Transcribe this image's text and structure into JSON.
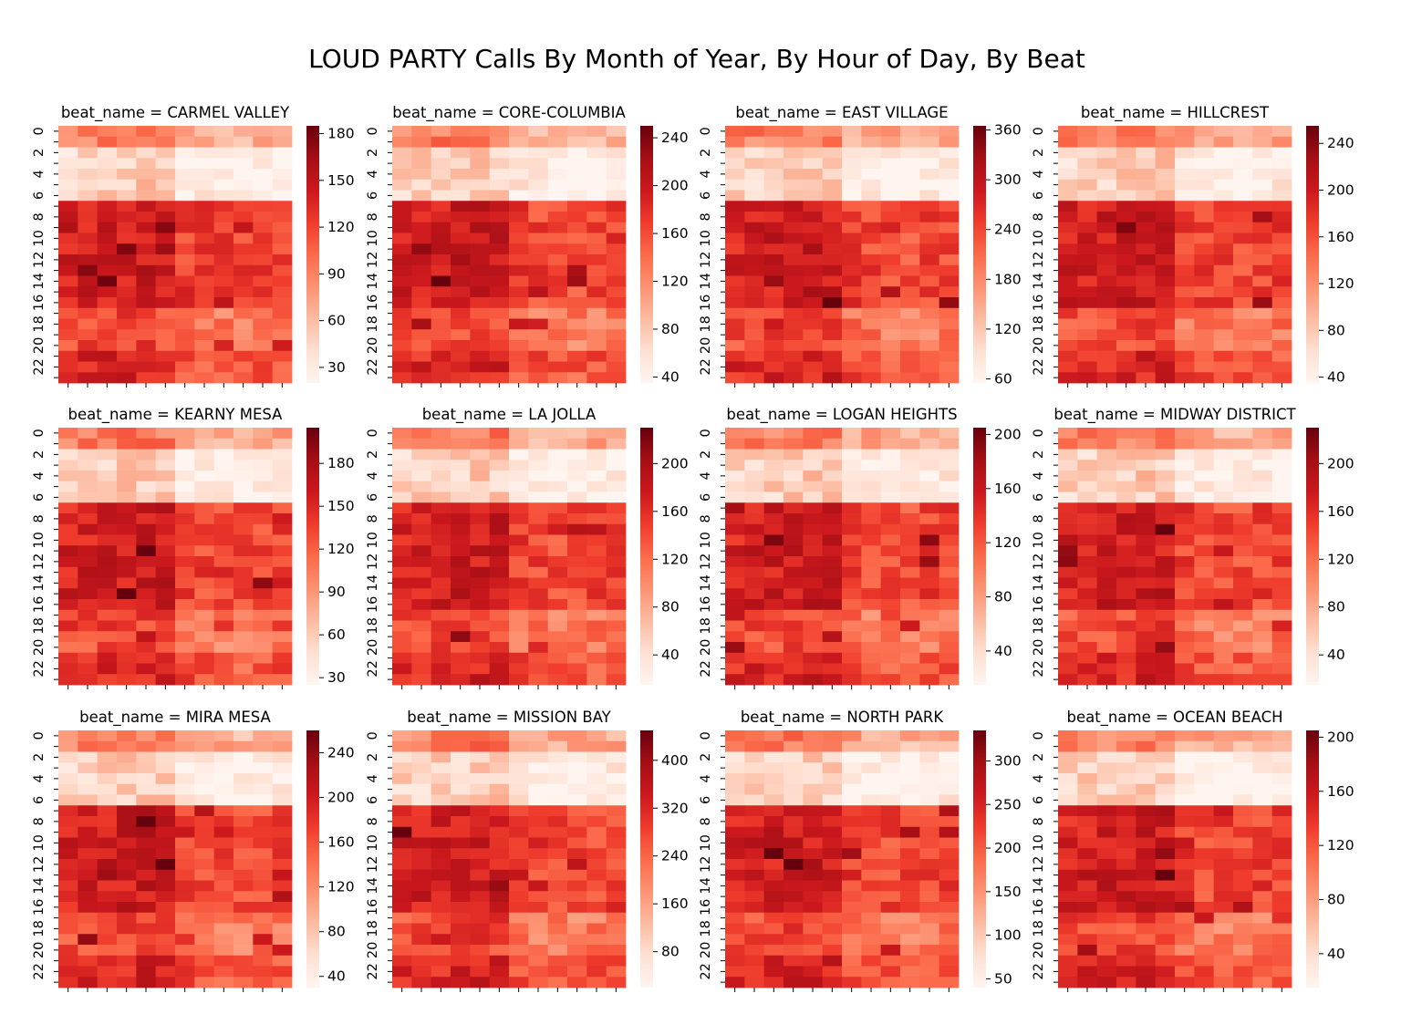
{
  "title": "LOUD PARTY Calls By Month of Year, By Hour of Day, By Beat",
  "colormap": {
    "name": "Reds",
    "stops": [
      "#fff5f0",
      "#fee0d2",
      "#fcbba1",
      "#fc9272",
      "#fb6a4a",
      "#ef3b2c",
      "#cb181d",
      "#a50f15",
      "#67000d"
    ]
  },
  "chart_data": {
    "type": "heatmap",
    "x_dimension": "month of year (12 columns, tick labels not shown)",
    "y_tick_labels": [
      "0",
      "2",
      "4",
      "6",
      "8",
      "10",
      "12",
      "14",
      "16",
      "18",
      "20",
      "22"
    ],
    "rows": 24,
    "columns": 12,
    "panels": [
      {
        "beat_name": "CARMEL VALLEY",
        "title": "beat_name = CARMEL VALLEY",
        "colorbar_range": [
          20,
          185
        ],
        "colorbar_ticks": [
          30,
          60,
          90,
          120,
          150,
          180
        ]
      },
      {
        "beat_name": "CORE-COLUMBIA",
        "title": "beat_name = CORE-COLUMBIA",
        "colorbar_range": [
          35,
          250
        ],
        "colorbar_ticks": [
          40,
          80,
          120,
          160,
          200,
          240
        ]
      },
      {
        "beat_name": "EAST VILLAGE",
        "title": "beat_name = EAST VILLAGE",
        "colorbar_range": [
          55,
          365
        ],
        "colorbar_ticks": [
          60,
          120,
          180,
          240,
          300,
          360
        ]
      },
      {
        "beat_name": "HILLCREST",
        "title": "beat_name = HILLCREST",
        "colorbar_range": [
          35,
          255
        ],
        "colorbar_ticks": [
          40,
          80,
          120,
          160,
          200,
          240
        ]
      },
      {
        "beat_name": "KEARNY MESA",
        "title": "beat_name = KEARNY MESA",
        "colorbar_range": [
          25,
          205
        ],
        "colorbar_ticks": [
          30,
          60,
          90,
          120,
          150,
          180
        ]
      },
      {
        "beat_name": "LA JOLLA",
        "title": "beat_name = LA JOLLA",
        "colorbar_range": [
          15,
          230
        ],
        "colorbar_ticks": [
          40,
          80,
          120,
          160,
          200
        ]
      },
      {
        "beat_name": "LOGAN HEIGHTS",
        "title": "beat_name = LOGAN HEIGHTS",
        "colorbar_range": [
          15,
          205
        ],
        "colorbar_ticks": [
          40,
          80,
          120,
          160,
          200
        ]
      },
      {
        "beat_name": "MIDWAY DISTRICT",
        "title": "beat_name = MIDWAY DISTRICT",
        "colorbar_range": [
          15,
          230
        ],
        "colorbar_ticks": [
          40,
          80,
          120,
          160,
          200
        ]
      },
      {
        "beat_name": "MIRA MESA",
        "title": "beat_name = MIRA MESA",
        "colorbar_range": [
          30,
          260
        ],
        "colorbar_ticks": [
          40,
          80,
          120,
          160,
          200,
          240
        ]
      },
      {
        "beat_name": "MISSION BAY",
        "title": "beat_name = MISSION BAY",
        "colorbar_range": [
          20,
          450
        ],
        "colorbar_ticks": [
          80,
          160,
          240,
          320,
          400
        ]
      },
      {
        "beat_name": "NORTH PARK",
        "title": "beat_name = NORTH PARK",
        "colorbar_range": [
          40,
          335
        ],
        "colorbar_ticks": [
          50,
          100,
          150,
          200,
          250,
          300
        ]
      },
      {
        "beat_name": "OCEAN BEACH",
        "title": "beat_name = OCEAN BEACH",
        "colorbar_range": [
          15,
          205
        ],
        "colorbar_ticks": [
          40,
          80,
          120,
          160,
          200
        ]
      }
    ]
  }
}
